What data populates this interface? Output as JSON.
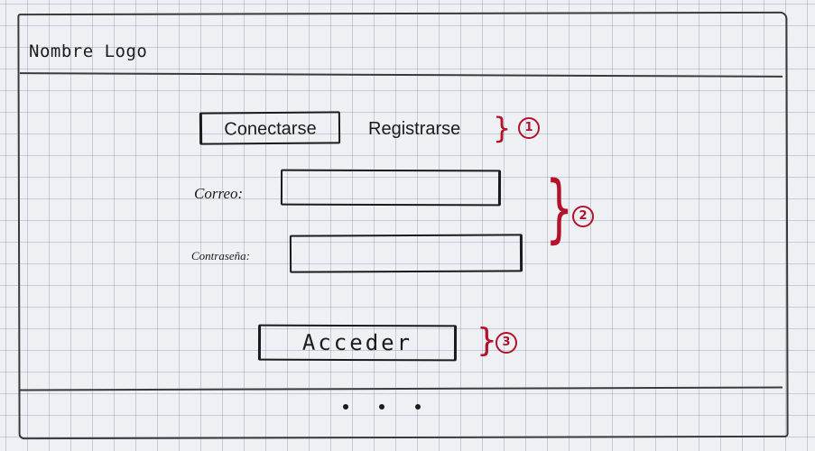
{
  "header": {
    "logo_text": "Nombre Logo"
  },
  "auth_tabs": {
    "connect_label": "Conectarse",
    "register_label": "Registrarse"
  },
  "form": {
    "email_label": "Correo:",
    "email_value": "",
    "password_label": "Contraseña:",
    "password_value": "",
    "submit_label": "Acceder"
  },
  "annotations": {
    "marker_1": "1",
    "marker_2": "2",
    "marker_3": "3",
    "color": "#b3122a"
  },
  "footer": {
    "pagination_dots": 3
  }
}
